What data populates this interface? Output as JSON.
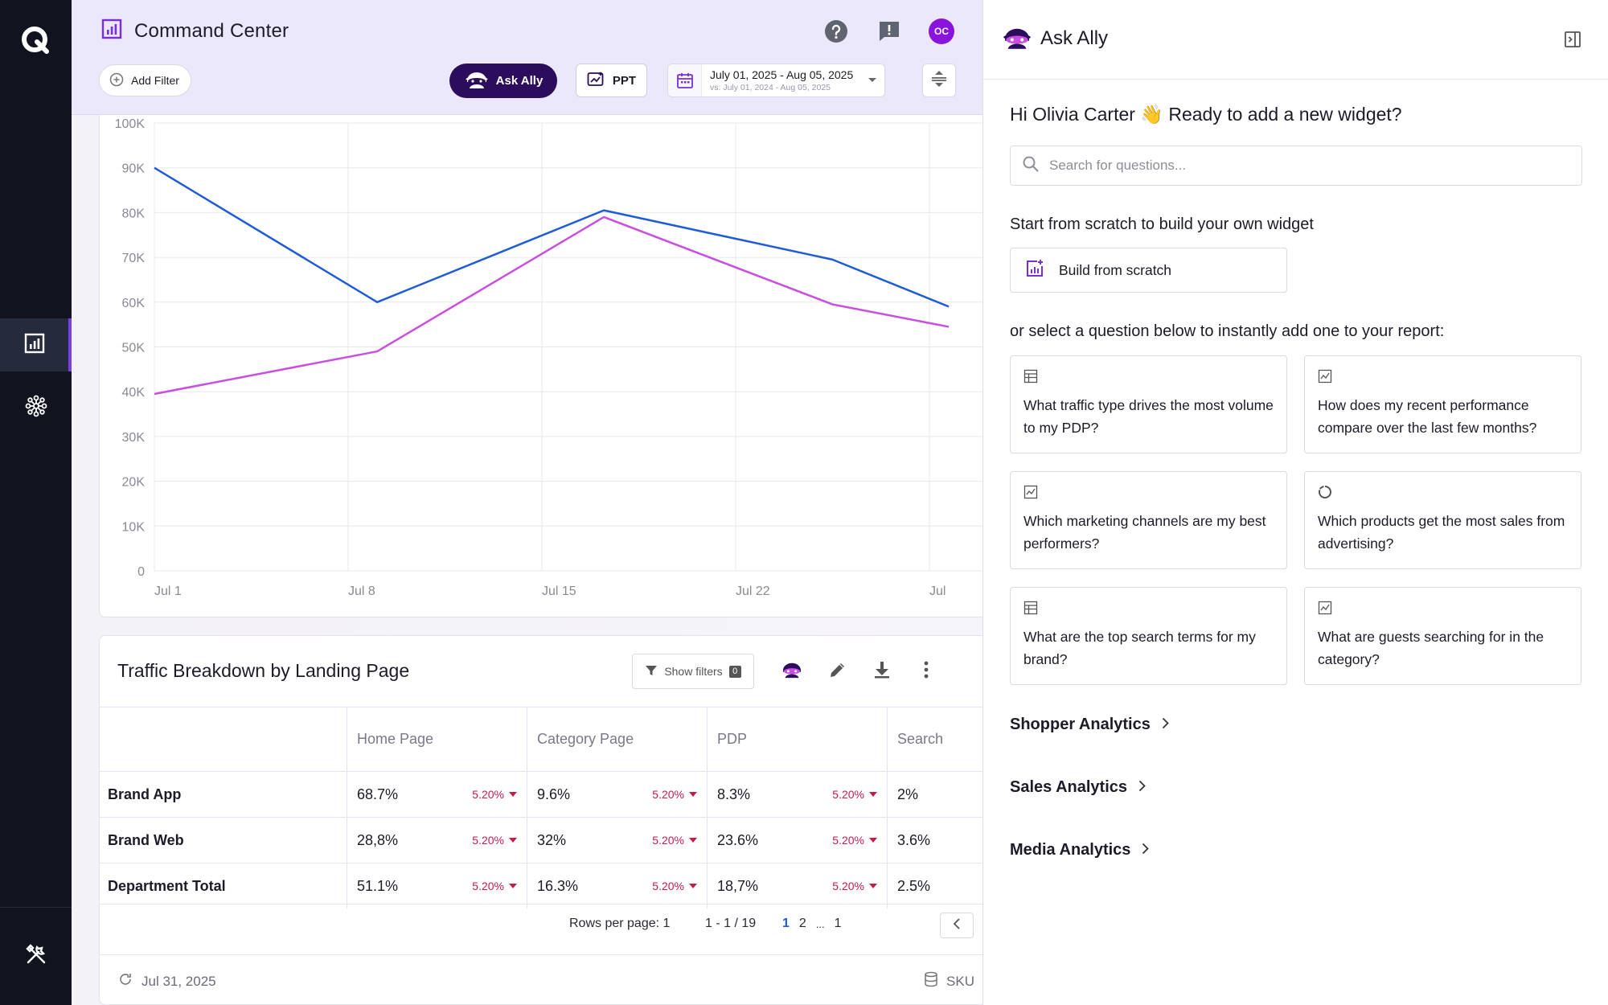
{
  "app": {
    "logo_icon": "q-logo-icon",
    "nav": [
      {
        "icon": "report-chart-icon",
        "active": true
      },
      {
        "icon": "network-icon",
        "active": false
      }
    ],
    "tools_icon": "tools-icon"
  },
  "header": {
    "title": "Command Center",
    "title_icon": "report-chart-icon",
    "avatar_initials": "OC",
    "add_filter_label": "Add Filter",
    "ask_ally_label": "Ask Ally",
    "ppt_label": "PPT",
    "date_range": "July 01, 2025 - Aug 05, 2025",
    "compare_range": "vs: July 01, 2024 - Aug 05, 2025"
  },
  "chart_data": {
    "type": "line",
    "x": [
      "Jul 1",
      "Jul 8",
      "Jul 15",
      "Jul 22",
      "Jul"
    ],
    "xlabel": "",
    "ylabel": "",
    "yticks": [
      "0",
      "10K",
      "20K",
      "30K",
      "40K",
      "50K",
      "60K",
      "70K",
      "80K",
      "90K",
      "100K"
    ],
    "ylim": [
      0,
      100000
    ],
    "grid": true,
    "series": [
      {
        "color": "#1f5cd6",
        "points": [
          [
            0,
            90000
          ],
          [
            1.15,
            60000
          ],
          [
            2.32,
            80500
          ],
          [
            3.5,
            69500
          ],
          [
            4.1,
            59000
          ]
        ]
      },
      {
        "color": "#c94fe0",
        "points": [
          [
            0,
            39500
          ],
          [
            1.15,
            49000
          ],
          [
            2.32,
            79000
          ],
          [
            3.5,
            59500
          ],
          [
            4.1,
            54500
          ]
        ]
      }
    ]
  },
  "table": {
    "title": "Traffic Breakdown by Landing Page",
    "show_filters_label": "Show filters",
    "show_filters_count": "0",
    "columns": [
      "",
      "Home Page",
      "Category Page",
      "PDP",
      "Search"
    ],
    "rows": [
      {
        "label": "Brand App",
        "cells": [
          {
            "v": "68.7%",
            "d": "5.20%"
          },
          {
            "v": "9.6%",
            "d": "5.20%"
          },
          {
            "v": "8.3%",
            "d": "5.20%"
          },
          {
            "v": "2%"
          }
        ]
      },
      {
        "label": "Brand Web",
        "cells": [
          {
            "v": "28,8%",
            "d": "5.20%"
          },
          {
            "v": "32%",
            "d": "5.20%"
          },
          {
            "v": "23.6%",
            "d": "5.20%"
          },
          {
            "v": "3.6%"
          }
        ]
      },
      {
        "label": "Department Total",
        "cells": [
          {
            "v": "51.1%",
            "d": "5.20%"
          },
          {
            "v": "16.3%",
            "d": "5.20%"
          },
          {
            "v": "18,7%",
            "d": "5.20%"
          },
          {
            "v": "2.5%"
          }
        ]
      }
    ],
    "rows_per_page": "Rows per page: 1",
    "range": "1 - 1 / 19",
    "pages": [
      "1",
      "2",
      "...",
      "1"
    ],
    "updated": "Jul 31, 2025",
    "source": "SKU"
  },
  "panel": {
    "title": "Ask Ally",
    "greeting": "Hi Olivia Carter 👋 Ready to add a new widget?",
    "search_placeholder": "Search for questions...",
    "scratch_heading": "Start from scratch to build your own widget",
    "build_label": "Build from scratch",
    "select_heading": "or select a question below to instantly add one to your report:",
    "questions": [
      {
        "icon": "table-icon",
        "text": "What traffic type drives the most volume to my PDP?"
      },
      {
        "icon": "line-chart-icon",
        "text": "How does my recent performance compare over the last few months?"
      },
      {
        "icon": "line-chart-icon",
        "text": "Which marketing channels are my best performers?"
      },
      {
        "icon": "donut-chart-icon",
        "text": "Which products get the most sales from advertising?"
      },
      {
        "icon": "table-icon",
        "text": "What are the top search terms for my brand?"
      },
      {
        "icon": "line-chart-icon",
        "text": "What are guests searching for in the category?"
      }
    ],
    "categories": [
      "Shopper Analytics",
      "Sales Analytics",
      "Media Analytics"
    ]
  }
}
